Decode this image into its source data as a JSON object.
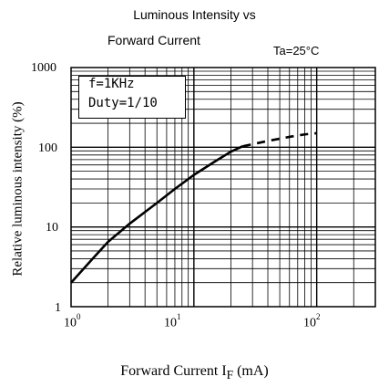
{
  "chart_data": {
    "type": "line",
    "title_line1": "Luminous Intensity vs",
    "title_line2": "Forward Current",
    "condition": "Ta=25°C",
    "xlabel": "Forward Current   I",
    "xlabel_sub": "F",
    "xlabel_unit": " (mA)",
    "ylabel": "Relative luminous intensity (%)",
    "x_scale": "log",
    "y_scale": "log",
    "xlim": [
      1,
      300
    ],
    "ylim": [
      1,
      1000
    ],
    "x_ticks": [
      {
        "base": "10",
        "exp": "0"
      },
      {
        "base": "10",
        "exp": "1"
      },
      {
        "base": "10",
        "exp": "2"
      }
    ],
    "y_ticks": [
      "1000",
      "100",
      "10",
      "1"
    ],
    "annotation": [
      "f=1KHz",
      "Duty=1/10"
    ],
    "grid": true,
    "series": [
      {
        "style": "solid",
        "x": [
          1,
          1.5,
          2,
          3,
          5,
          7,
          10,
          15,
          20,
          25
        ],
        "y": [
          2,
          4,
          6.5,
          11,
          20,
          30,
          45,
          67,
          88,
          103
        ]
      },
      {
        "style": "dashed",
        "x": [
          25,
          40,
          60,
          80,
          100
        ],
        "y": [
          103,
          120,
          135,
          145,
          150
        ]
      }
    ]
  }
}
